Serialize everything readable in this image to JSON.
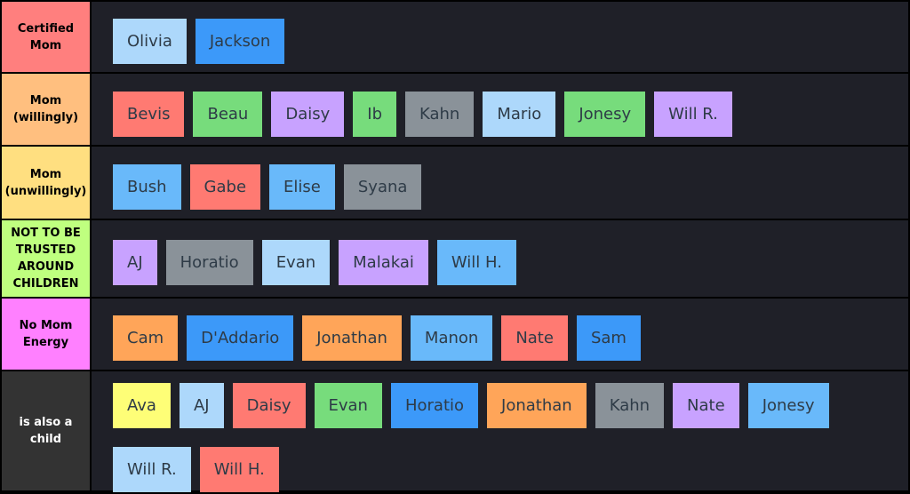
{
  "tiers": [
    {
      "label": "Certified\nMom",
      "color": "#ff7f7e",
      "items": [
        {
          "name": "Olivia",
          "color": "lightblue"
        },
        {
          "name": "Jackson",
          "color": "blue"
        }
      ]
    },
    {
      "label": "Mom\n(willingly)",
      "color": "#ffbf7f",
      "items": [
        {
          "name": "Bevis",
          "color": "red"
        },
        {
          "name": "Beau",
          "color": "green"
        },
        {
          "name": "Daisy",
          "color": "purple"
        },
        {
          "name": "Ib",
          "color": "green"
        },
        {
          "name": "Kahn",
          "color": "gray"
        },
        {
          "name": "Mario",
          "color": "lightblue"
        },
        {
          "name": "Jonesy",
          "color": "green"
        },
        {
          "name": "Will R.",
          "color": "purple"
        }
      ]
    },
    {
      "label": "Mom\n(unwillingly)",
      "color": "#ffdf80",
      "items": [
        {
          "name": "Bush",
          "color": "skyblue"
        },
        {
          "name": "Gabe",
          "color": "red"
        },
        {
          "name": "Elise",
          "color": "skyblue"
        },
        {
          "name": "Syana",
          "color": "gray"
        }
      ]
    },
    {
      "label": "NOT TO BE\nTRUSTED\nAROUND\nCHILDREN",
      "color": "#bfff7f",
      "items": [
        {
          "name": "AJ",
          "color": "purple"
        },
        {
          "name": "Horatio",
          "color": "gray"
        },
        {
          "name": "Evan",
          "color": "lightblue"
        },
        {
          "name": "Malakai",
          "color": "purple"
        },
        {
          "name": "Will H.",
          "color": "skyblue"
        }
      ]
    },
    {
      "label": "No Mom\nEnergy",
      "color": "#ff80ff",
      "items": [
        {
          "name": "Cam",
          "color": "orange"
        },
        {
          "name": "D'Addario",
          "color": "blue"
        },
        {
          "name": "Jonathan",
          "color": "orange"
        },
        {
          "name": "Manon",
          "color": "skyblue"
        },
        {
          "name": "Nate",
          "color": "red"
        },
        {
          "name": "Sam",
          "color": "blue"
        }
      ]
    },
    {
      "label": "is also a\nchild",
      "color": "#333333",
      "label_text_color": "#ffffff",
      "items": [
        {
          "name": "Ava",
          "color": "yellow"
        },
        {
          "name": "AJ",
          "color": "lightblue"
        },
        {
          "name": "Daisy",
          "color": "red"
        },
        {
          "name": "Evan",
          "color": "green"
        },
        {
          "name": "Horatio",
          "color": "blue"
        },
        {
          "name": "Jonathan",
          "color": "orange"
        },
        {
          "name": "Kahn",
          "color": "gray"
        },
        {
          "name": "Nate",
          "color": "purple"
        },
        {
          "name": "Jonesy",
          "color": "skyblue"
        },
        {
          "name": "Will R.",
          "color": "lightblue"
        },
        {
          "name": "Will H.",
          "color": "red"
        }
      ]
    }
  ]
}
